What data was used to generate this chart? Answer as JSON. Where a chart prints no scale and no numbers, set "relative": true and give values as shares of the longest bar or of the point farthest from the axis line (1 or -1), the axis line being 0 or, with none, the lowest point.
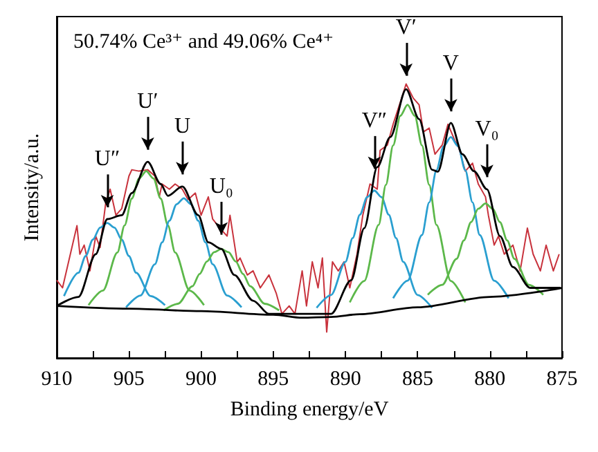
{
  "chart_data": {
    "type": "line",
    "title": "50.74% Ce³⁺ and 49.06% Ce⁴⁺",
    "xlabel": "Binding energy/eV",
    "ylabel": "Intensity/a.u.",
    "relative": true,
    "tick_labels": "x",
    "marker": "none",
    "xlim": [
      910,
      875
    ],
    "xticks": [
      910,
      {
        "value": 907.5,
        "label": null
      },
      905,
      {
        "value": 902.5,
        "label": null
      },
      900,
      {
        "value": 897.5,
        "label": null
      },
      895,
      {
        "value": 892.5,
        "label": null
      },
      890,
      {
        "value": 887.5,
        "label": null
      },
      885,
      {
        "value": 882.5,
        "label": null
      },
      880,
      {
        "value": 877.5,
        "label": null
      },
      875
    ],
    "series": [
      {
        "color": "#c8323c",
        "x": [
          910,
          909.6,
          908.6,
          908.4,
          908.1,
          907.7,
          907.3,
          907,
          906.6,
          906.3,
          905.9,
          905.5,
          905,
          904.8,
          904.3,
          903.7,
          903.2,
          902.9,
          902.7,
          902.2,
          901.8,
          901.3,
          900.9,
          900.4,
          900,
          899.5,
          899.2,
          898.7,
          898.2,
          898,
          897.5,
          897.3,
          896.8,
          896.4,
          895.9,
          895.3,
          894.8,
          894.4,
          893.9,
          893.5,
          893,
          892.7,
          892.3,
          891.9,
          891.6,
          891.3,
          890.9,
          890.5,
          890.1,
          889.7,
          889.2,
          888.8,
          888.3,
          887.8,
          887.6,
          887.1,
          886.7,
          886.2,
          885.8,
          885.3,
          884.9,
          884.6,
          884.2,
          883.8,
          883.3,
          882.9,
          882.4,
          882.2,
          881.7,
          881.2,
          880.8,
          880.3,
          880.1,
          879.7,
          879.4,
          879,
          878.4,
          877.9,
          877.4,
          877,
          876.5,
          876.1,
          875.6,
          875.2
        ],
        "values": [
          0.284,
          0.256,
          0.483,
          0.379,
          0.412,
          0.318,
          0.445,
          0.403,
          0.569,
          0.616,
          0.521,
          0.545,
          0.664,
          0.687,
          0.682,
          0.687,
          0.664,
          0.588,
          0.635,
          0.616,
          0.635,
          0.616,
          0.578,
          0.602,
          0.521,
          0.588,
          0.507,
          0.474,
          0.445,
          0.521,
          0.351,
          0.365,
          0.303,
          0.318,
          0.256,
          0.303,
          0.237,
          0.161,
          0.19,
          0.161,
          0.318,
          0.19,
          0.351,
          0.256,
          0.365,
          0.095,
          0.351,
          0.318,
          0.351,
          0.256,
          0.379,
          0.521,
          0.635,
          0.616,
          0.758,
          0.777,
          0.853,
          0.934,
          1,
          0.948,
          0.924,
          0.825,
          0.839,
          0.744,
          0.777,
          0.853,
          0.791,
          0.777,
          0.682,
          0.711,
          0.635,
          0.588,
          0.521,
          0.412,
          0.445,
          0.379,
          0.412,
          0.318,
          0.474,
          0.379,
          0.318,
          0.412,
          0.318,
          0.379
        ]
      },
      {
        "color": "#2a9fd0",
        "x": [
          902.5,
          903.5,
          904.5,
          905,
          905.5,
          906,
          906.5,
          907,
          907.5,
          908,
          908.5,
          909.5
        ],
        "values": [
          0.193,
          0.226,
          0.311,
          0.372,
          0.432,
          0.476,
          0.493,
          0.476,
          0.432,
          0.372,
          0.311,
          0.226
        ]
      },
      {
        "color": "#5cb84a",
        "x": [
          899.8,
          900.8,
          901.8,
          902.3,
          902.8,
          903.3,
          903.8,
          904.3,
          904.8,
          905.3,
          905.8,
          906.8,
          907.8
        ],
        "values": [
          0.193,
          0.246,
          0.385,
          0.484,
          0.582,
          0.655,
          0.682,
          0.655,
          0.582,
          0.484,
          0.385,
          0.246,
          0.193
        ]
      },
      {
        "color": "#2a9fd0",
        "x": [
          897.2,
          898.2,
          899.2,
          899.7,
          900.2,
          900.7,
          901.2,
          901.7,
          902.2,
          902.7,
          903.2,
          904.2,
          905.2
        ],
        "values": [
          0.185,
          0.228,
          0.342,
          0.422,
          0.501,
          0.561,
          0.583,
          0.561,
          0.501,
          0.422,
          0.342,
          0.228,
          0.185
        ]
      },
      {
        "color": "#5cb84a",
        "x": [
          894.6,
          895.6,
          896.6,
          897.1,
          897.6,
          898.1,
          898.6,
          899.1,
          899.6,
          900.1,
          900.6,
          901.6,
          902.6
        ],
        "values": [
          0.174,
          0.198,
          0.262,
          0.307,
          0.352,
          0.386,
          0.398,
          0.386,
          0.352,
          0.307,
          0.262,
          0.198,
          0.174
        ]
      },
      {
        "color": "#2a9fd0",
        "x": [
          884,
          885,
          886,
          886.5,
          887,
          887.5,
          888,
          888.5,
          889,
          889.5,
          890,
          891,
          892
        ],
        "values": [
          0.183,
          0.23,
          0.351,
          0.438,
          0.523,
          0.587,
          0.611,
          0.587,
          0.523,
          0.438,
          0.351,
          0.23,
          0.183
        ]
      },
      {
        "color": "#5cb84a",
        "x": [
          881.7,
          882.7,
          883.7,
          884.2,
          884.7,
          885.2,
          885.7,
          886.2,
          886.7,
          887.2,
          887.7,
          888.7,
          889.7
        ],
        "values": [
          0.203,
          0.281,
          0.486,
          0.632,
          0.776,
          0.884,
          0.924,
          0.884,
          0.776,
          0.632,
          0.486,
          0.281,
          0.203
        ]
      },
      {
        "color": "#2a9fd0",
        "x": [
          878.7,
          879.7,
          880.7,
          881.2,
          881.7,
          882.2,
          882.7,
          883.2,
          883.7,
          884.2,
          884.7,
          885.7,
          886.7
        ],
        "values": [
          0.218,
          0.282,
          0.449,
          0.568,
          0.685,
          0.773,
          0.806,
          0.773,
          0.685,
          0.568,
          0.449,
          0.282,
          0.218
        ]
      },
      {
        "color": "#5cb84a",
        "x": [
          876.3,
          877.3,
          878.3,
          878.8,
          879.3,
          879.8,
          880.3,
          880.8,
          881.3,
          881.8,
          882.3,
          883.3,
          884.3
        ],
        "values": [
          0.231,
          0.267,
          0.362,
          0.429,
          0.496,
          0.545,
          0.564,
          0.545,
          0.496,
          0.429,
          0.362,
          0.267,
          0.231
        ]
      },
      {
        "color": "#000000",
        "x": [
          910,
          905,
          900,
          895,
          893,
          891,
          889,
          885,
          880,
          875
        ],
        "values": [
          0.19,
          0.18,
          0.171,
          0.158,
          0.147,
          0.15,
          0.16,
          0.185,
          0.223,
          0.256
        ]
      },
      {
        "color": "#000000",
        "x": [
          910,
          908.5,
          907.3,
          906.5,
          905.5,
          904.8,
          903.7,
          902.8,
          902.3,
          901.3,
          900.2,
          899.5,
          898.6,
          897.7,
          896.4,
          895.3,
          893.5,
          891,
          889.6,
          888.7,
          887.8,
          886.9,
          885.8,
          884.9,
          884,
          883.6,
          882.7,
          881.9,
          881.1,
          880.2,
          879.3,
          878.4,
          877.2,
          875.1
        ],
        "values": [
          0.19,
          0.223,
          0.379,
          0.507,
          0.521,
          0.602,
          0.716,
          0.635,
          0.592,
          0.626,
          0.521,
          0.422,
          0.398,
          0.303,
          0.209,
          0.161,
          0.161,
          0.161,
          0.284,
          0.474,
          0.697,
          0.806,
          0.981,
          0.872,
          0.687,
          0.68,
          0.858,
          0.744,
          0.682,
          0.616,
          0.445,
          0.332,
          0.256,
          0.256
        ]
      }
    ],
    "annotations": [
      {
        "text": "U″",
        "x": 906.5,
        "y": 0.5
      },
      {
        "text": "U′",
        "x": 903.7,
        "y": 0.71
      },
      {
        "text": "U",
        "x": 901.3,
        "y": 0.62
      },
      {
        "text": "U₀",
        "x": 898.6,
        "y": 0.4
      },
      {
        "text": "V″",
        "x": 888,
        "y": 0.64
      },
      {
        "text": "V′",
        "x": 885.8,
        "y": 0.98
      },
      {
        "text": "V",
        "x": 882.7,
        "y": 0.85
      },
      {
        "text": "V₀",
        "x": 880.2,
        "y": 0.61
      }
    ]
  }
}
